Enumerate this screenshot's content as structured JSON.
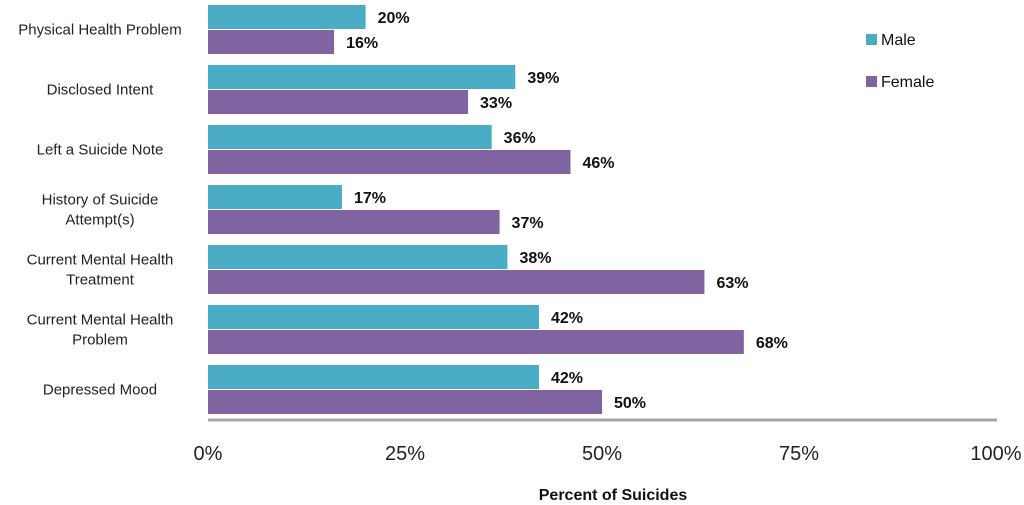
{
  "chart_data": {
    "type": "bar",
    "orientation": "horizontal",
    "categories": [
      "Physical Health Problem",
      "Disclosed Intent",
      "Left a Suicide Note",
      "History of Suicide Attempt(s)",
      "Current Mental Health Treatment",
      "Current Mental Health Problem",
      "Depressed Mood"
    ],
    "series": [
      {
        "name": "Male",
        "color": "#4bacc6",
        "values": [
          20,
          39,
          36,
          17,
          38,
          42,
          42
        ]
      },
      {
        "name": "Female",
        "color": "#8064a2",
        "values": [
          16,
          33,
          46,
          37,
          63,
          68,
          50
        ]
      }
    ],
    "title": "",
    "xlabel": "Percent of Suicides",
    "ylabel": "",
    "xlim": [
      0,
      100
    ],
    "xticks": [
      "0%",
      "25%",
      "50%",
      "75%",
      "100%"
    ],
    "value_suffix": "%",
    "grid": false,
    "legend_position": "top-right",
    "axis_color": "#a6a6a6"
  }
}
